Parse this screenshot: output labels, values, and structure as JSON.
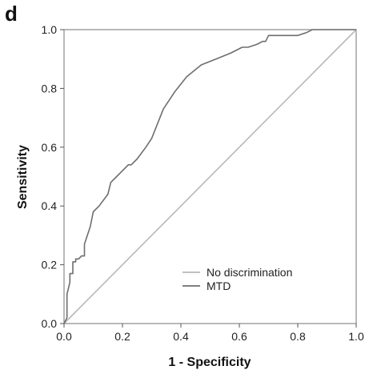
{
  "panel_label": "d",
  "chart_data": {
    "type": "line",
    "title": "",
    "xlabel": "1 - Specificity",
    "ylabel": "Sensitivity",
    "xlim": [
      0.0,
      1.0
    ],
    "ylim": [
      0.0,
      1.0
    ],
    "xticks": [
      "0.0",
      "0.2",
      "0.4",
      "0.6",
      "0.8",
      "1.0"
    ],
    "yticks": [
      "0.0",
      "0.2",
      "0.4",
      "0.6",
      "0.8",
      "1.0"
    ],
    "grid": false,
    "legend_position": "bottom-right",
    "series": [
      {
        "name": "No discrimination",
        "color": "#b8b8b8",
        "x": [
          0.0,
          1.0
        ],
        "y": [
          0.0,
          1.0
        ]
      },
      {
        "name": "MTD",
        "color": "#6e6e6e",
        "x": [
          0.0,
          0.01,
          0.01,
          0.02,
          0.02,
          0.03,
          0.03,
          0.04,
          0.04,
          0.05,
          0.06,
          0.07,
          0.07,
          0.09,
          0.1,
          0.12,
          0.15,
          0.16,
          0.18,
          0.2,
          0.22,
          0.23,
          0.25,
          0.28,
          0.3,
          0.32,
          0.34,
          0.38,
          0.42,
          0.47,
          0.52,
          0.57,
          0.61,
          0.63,
          0.66,
          0.68,
          0.69,
          0.7,
          0.75,
          0.8,
          0.83,
          0.85,
          0.87,
          0.88,
          0.93,
          1.0
        ],
        "y": [
          0.0,
          0.02,
          0.1,
          0.14,
          0.17,
          0.17,
          0.21,
          0.21,
          0.22,
          0.22,
          0.23,
          0.23,
          0.27,
          0.33,
          0.38,
          0.4,
          0.44,
          0.48,
          0.5,
          0.52,
          0.54,
          0.54,
          0.56,
          0.6,
          0.63,
          0.68,
          0.73,
          0.79,
          0.84,
          0.88,
          0.9,
          0.92,
          0.94,
          0.94,
          0.95,
          0.96,
          0.96,
          0.98,
          0.98,
          0.98,
          0.99,
          1.0,
          1.0,
          1.0,
          1.0,
          1.0
        ]
      }
    ]
  }
}
